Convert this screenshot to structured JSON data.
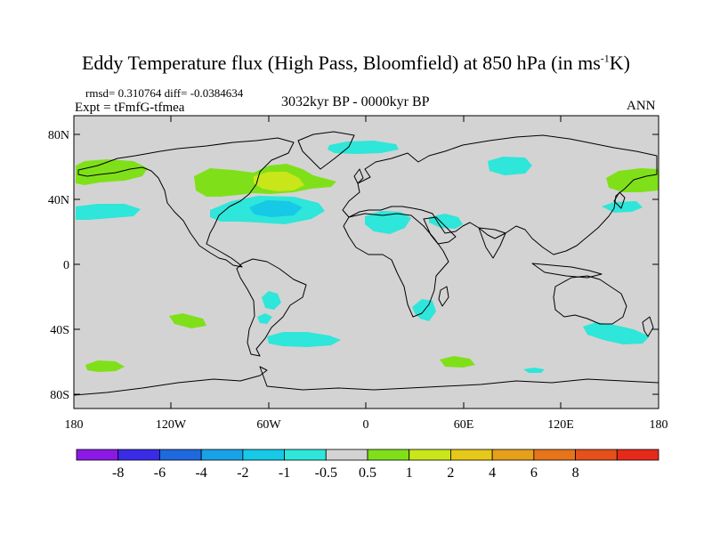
{
  "title": {
    "main": "Eddy Temperature flux (High Pass, Bloomfield) at 850 hPa (in ms",
    "sup": "-1",
    "end": "K)"
  },
  "stats": "rmsd= 0.310764 diff= -0.0384634",
  "experiment": "Expt = tFmfG-tfmea",
  "period": "3032kyr BP - 0000kyr BP",
  "season": "ANN",
  "axes": {
    "lat_labels": [
      "80N",
      "40N",
      "0",
      "40S",
      "80S"
    ],
    "lon_labels": [
      "180",
      "120W",
      "60W",
      "0",
      "60E",
      "120E",
      "180"
    ]
  },
  "colorbar": {
    "colors": [
      "#8B19E6",
      "#3A2BE6",
      "#1F69DE",
      "#19A2E6",
      "#16C9E6",
      "#2EE6D9",
      "#D3D3D3",
      "#7FE01A",
      "#C8E61A",
      "#E6C81A",
      "#E6A01A",
      "#E6741A",
      "#E6501A",
      "#E62A1A"
    ],
    "labels": [
      "-8",
      "-6",
      "-4",
      "-2",
      "-1",
      "-0.5",
      "0.5",
      "1",
      "2",
      "4",
      "6",
      "8"
    ]
  },
  "colors": {
    "land_ocean_background": "#D3D3D3",
    "negative_light": "#2EE6D9",
    "negative_mid": "#16C9E6",
    "negative_strong": "#19A2E6",
    "positive_light": "#7FE01A",
    "positive_mid": "#C8E61A"
  }
}
